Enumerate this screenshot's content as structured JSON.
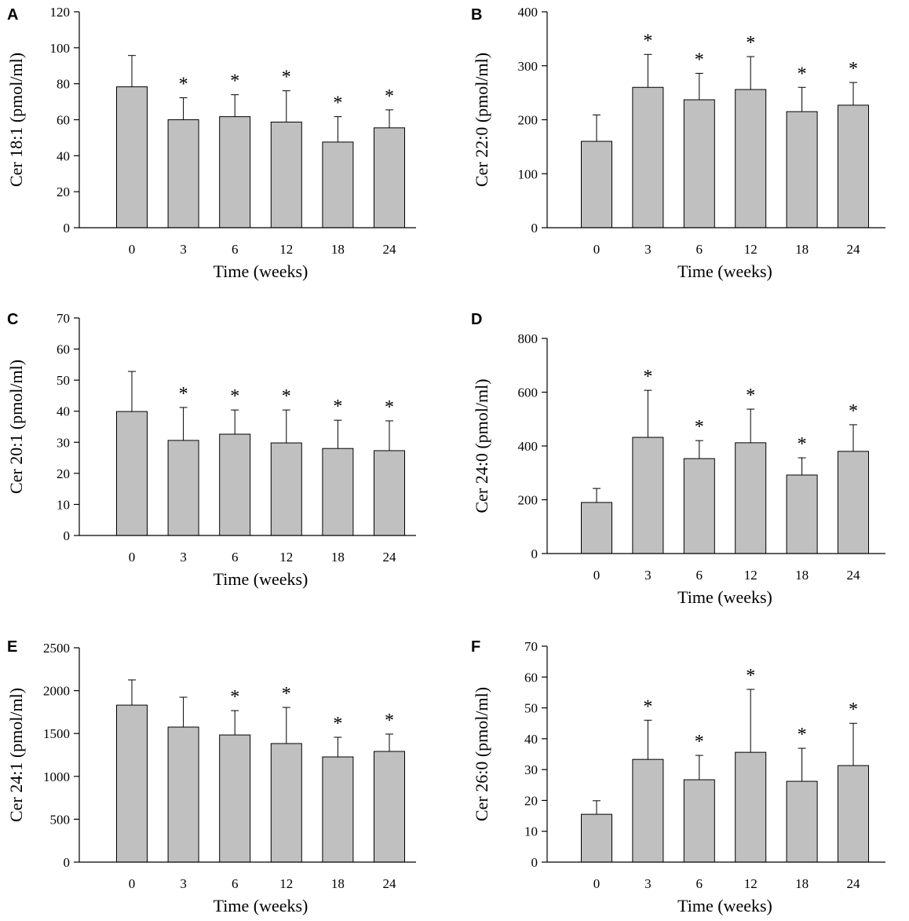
{
  "colors": {
    "bar_fill": "#c0c0c0",
    "stroke": "#000000"
  },
  "chart_data": [
    {
      "panel": "A",
      "type": "bar",
      "categories": [
        "0",
        "3",
        "6",
        "12",
        "18",
        "24"
      ],
      "values": [
        78.3,
        60.0,
        61.7,
        58.7,
        47.6,
        55.5
      ],
      "errors": [
        17.4,
        12.2,
        12.2,
        17.4,
        14.1,
        10.0
      ],
      "annotations": [
        "",
        "*",
        "*",
        "*",
        "*",
        "*"
      ],
      "xlabel": "Time (weeks)",
      "ylabel": "Cer 18:1 (pmol/ml)",
      "ylim": [
        0,
        120
      ],
      "yticks": [
        0,
        20,
        40,
        60,
        80,
        100,
        120
      ]
    },
    {
      "panel": "B",
      "type": "bar",
      "categories": [
        "0",
        "3",
        "6",
        "12",
        "18",
        "24"
      ],
      "values": [
        160,
        260,
        237,
        256,
        215,
        227
      ],
      "errors": [
        49,
        61,
        49,
        61,
        45,
        42
      ],
      "annotations": [
        "",
        "*",
        "*",
        "*",
        "*",
        "*"
      ],
      "xlabel": "Time (weeks)",
      "ylabel": "Cer 22:0 (pmol/ml)",
      "ylim": [
        0,
        400
      ],
      "yticks": [
        0,
        100,
        200,
        300,
        400
      ]
    },
    {
      "panel": "C",
      "type": "bar",
      "categories": [
        "0",
        "3",
        "6",
        "12",
        "18",
        "24"
      ],
      "values": [
        39.9,
        30.6,
        32.6,
        29.8,
        28.0,
        27.3
      ],
      "errors": [
        12.9,
        10.6,
        7.8,
        10.6,
        9.1,
        9.6
      ],
      "annotations": [
        "",
        "*",
        "*",
        "*",
        "*",
        "*"
      ],
      "xlabel": "Time (weeks)",
      "ylabel": "Cer 20:1 (pmol/ml)",
      "ylim": [
        0,
        70
      ],
      "yticks": [
        0,
        10,
        20,
        30,
        40,
        50,
        60,
        70
      ]
    },
    {
      "panel": "D",
      "type": "bar",
      "categories": [
        "0",
        "3",
        "6",
        "12",
        "18",
        "24"
      ],
      "values": [
        190,
        432,
        353,
        412,
        292,
        380
      ],
      "errors": [
        52,
        175,
        67,
        125,
        64,
        99
      ],
      "annotations": [
        "",
        "*",
        "*",
        "*",
        "*",
        "*"
      ],
      "xlabel": "Time (weeks)",
      "ylabel": "Cer 24:0 (pmol/ml)",
      "ylim": [
        0,
        800
      ],
      "yticks": [
        0,
        200,
        400,
        600,
        800
      ]
    },
    {
      "panel": "E",
      "type": "bar",
      "categories": [
        "0",
        "3",
        "6",
        "12",
        "18",
        "24"
      ],
      "values": [
        1831,
        1575,
        1483,
        1383,
        1227,
        1291
      ],
      "errors": [
        294,
        348,
        284,
        421,
        229,
        202
      ],
      "annotations": [
        "",
        "",
        "*",
        "*",
        "*",
        "*"
      ],
      "xlabel": "Time (weeks)",
      "ylabel": "Cer 24:1 (pmol/ml)",
      "ylim": [
        0,
        2500
      ],
      "yticks": [
        0,
        500,
        1000,
        1500,
        2000,
        2500
      ]
    },
    {
      "panel": "F",
      "type": "bar",
      "categories": [
        "0",
        "3",
        "6",
        "12",
        "18",
        "24"
      ],
      "values": [
        15.5,
        33.3,
        26.7,
        35.6,
        26.2,
        31.3
      ],
      "errors": [
        4.4,
        12.7,
        7.9,
        20.4,
        10.7,
        13.7
      ],
      "annotations": [
        "",
        "*",
        "*",
        "*",
        "*",
        "*"
      ],
      "xlabel": "Time (weeks)",
      "ylabel": "Cer 26:0 (pmol/ml)",
      "ylim": [
        0,
        70
      ],
      "yticks": [
        0,
        10,
        20,
        30,
        40,
        50,
        60,
        70
      ]
    }
  ]
}
